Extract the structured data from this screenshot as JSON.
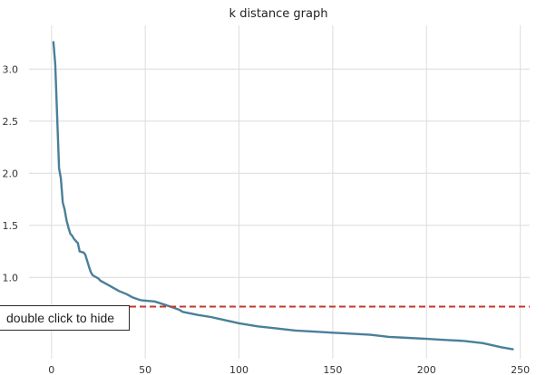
{
  "chart_data": {
    "type": "line",
    "title": "k distance graph",
    "xlabel": "",
    "ylabel": "",
    "xlim": [
      -12,
      255
    ],
    "ylim": [
      0.22,
      3.42
    ],
    "xticks": [
      0,
      50,
      100,
      150,
      200,
      250
    ],
    "yticks": [
      1.0,
      1.5,
      2.0,
      2.5,
      3.0
    ],
    "xtick_labels": [
      "0",
      "50",
      "100",
      "150",
      "200",
      "250"
    ],
    "ytick_labels": [
      "1.0",
      "1.5",
      "2.0",
      "2.5",
      "3.0"
    ],
    "grid": true,
    "series": [
      {
        "color": "#4a7f9a",
        "x": [
          1,
          2,
          3,
          4,
          5,
          6,
          7,
          8,
          9,
          10,
          11,
          12,
          14,
          15,
          17,
          18,
          20,
          21,
          22,
          25,
          26,
          28,
          30,
          33,
          36,
          40,
          43,
          46,
          48,
          55,
          60,
          65,
          68,
          70,
          78,
          85,
          90,
          100,
          110,
          120,
          130,
          140,
          150,
          160,
          170,
          180,
          190,
          200,
          210,
          220,
          230,
          240,
          246
        ],
        "values": [
          3.26,
          3.05,
          2.55,
          2.05,
          1.95,
          1.72,
          1.65,
          1.55,
          1.48,
          1.42,
          1.4,
          1.37,
          1.33,
          1.25,
          1.24,
          1.22,
          1.1,
          1.05,
          1.02,
          0.99,
          0.97,
          0.95,
          0.93,
          0.9,
          0.87,
          0.84,
          0.81,
          0.79,
          0.78,
          0.77,
          0.74,
          0.71,
          0.69,
          0.67,
          0.64,
          0.62,
          0.6,
          0.56,
          0.53,
          0.51,
          0.49,
          0.48,
          0.47,
          0.46,
          0.45,
          0.43,
          0.42,
          0.41,
          0.4,
          0.39,
          0.37,
          0.33,
          0.31
        ]
      }
    ],
    "hline": {
      "y": 0.72,
      "color": "#c0392b",
      "style": "dashed"
    }
  },
  "tooltip": {
    "text": "double click to hide"
  }
}
